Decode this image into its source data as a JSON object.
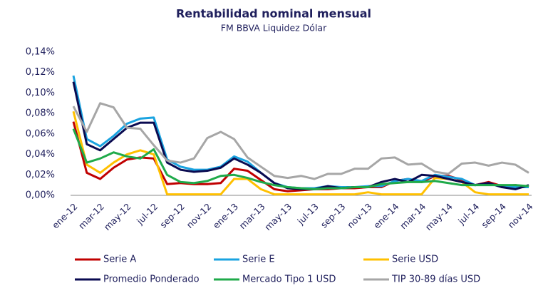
{
  "chart_data": {
    "type": "line",
    "title": "Rentabilidad nominal mensual",
    "subtitle": "FM BBVA Liquidez Dólar",
    "categories": [
      "ene-12",
      null,
      "mar-12",
      null,
      "may-12",
      null,
      "jul-12",
      null,
      "sep-12",
      null,
      "nov-12",
      null,
      "ene-13",
      null,
      "mar-13",
      null,
      "may-13",
      null,
      "jul-13",
      null,
      "sep-13",
      null,
      "nov-13",
      null,
      "ene-14",
      null,
      "mar-14",
      null,
      "may-14",
      null,
      "jul-14",
      null,
      "sep-14",
      null,
      "nov-14"
    ],
    "ylim": [
      0,
      0.14
    ],
    "yticks": [
      {
        "value": 0,
        "label": "0,00%"
      },
      {
        "value": 0.02,
        "label": "0,02%"
      },
      {
        "value": 0.04,
        "label": "0,04%"
      },
      {
        "value": 0.06,
        "label": "0,06%"
      },
      {
        "value": 0.08,
        "label": "0,08%"
      },
      {
        "value": 0.1,
        "label": "0,10%"
      },
      {
        "value": 0.12,
        "label": "0,12%"
      },
      {
        "value": 0.14,
        "label": "0,14%"
      }
    ],
    "grid": false,
    "legend": "bottom",
    "series": [
      {
        "name": "Serie A",
        "color": "#c00000",
        "values": [
          0.072,
          0.022,
          0.016,
          0.027,
          0.035,
          0.037,
          0.036,
          0.011,
          0.012,
          0.011,
          0.011,
          0.012,
          0.026,
          0.024,
          0.015,
          0.006,
          0.004,
          0.005,
          0.006,
          0.006,
          0.007,
          0.007,
          0.008,
          0.008,
          0.014,
          0.016,
          0.013,
          0.019,
          0.019,
          0.015,
          0.01,
          0.013,
          0.009,
          0.01,
          0.008
        ]
      },
      {
        "name": "Serie E",
        "color": "#1aa3e0",
        "values": [
          0.117,
          0.055,
          0.048,
          0.058,
          0.07,
          0.075,
          0.076,
          0.035,
          0.028,
          0.025,
          0.025,
          0.028,
          0.038,
          0.033,
          0.022,
          0.012,
          0.008,
          0.007,
          0.007,
          0.009,
          0.008,
          0.008,
          0.009,
          0.009,
          0.014,
          0.016,
          0.014,
          0.02,
          0.018,
          0.016,
          0.01,
          0.012,
          0.008,
          0.008,
          0.008
        ]
      },
      {
        "name": "Serie USD",
        "color": "#ffc000",
        "values": [
          0.082,
          0.03,
          0.022,
          0.032,
          0.04,
          0.044,
          0.04,
          0.001,
          0.001,
          0.001,
          0.001,
          0.001,
          0.016,
          0.016,
          0.006,
          0.001,
          0.001,
          0.001,
          0.001,
          0.001,
          0.001,
          0.001,
          0.003,
          0.001,
          0.001,
          0.001,
          0.001,
          0.017,
          0.016,
          0.013,
          0.003,
          0.001,
          0.001,
          0.001,
          0.001
        ]
      },
      {
        "name": "Promedio Ponderado",
        "color": "#0a0a50",
        "values": [
          0.111,
          0.05,
          0.044,
          0.055,
          0.066,
          0.071,
          0.071,
          0.032,
          0.025,
          0.023,
          0.024,
          0.027,
          0.036,
          0.03,
          0.022,
          0.012,
          0.007,
          0.006,
          0.006,
          0.009,
          0.007,
          0.008,
          0.008,
          0.013,
          0.016,
          0.013,
          0.02,
          0.019,
          0.016,
          0.013,
          0.01,
          0.012,
          0.008,
          0.006,
          0.01
        ]
      },
      {
        "name": "Mercado Tipo 1 USD",
        "color": "#1faa4a",
        "values": [
          0.065,
          0.032,
          0.036,
          0.042,
          0.038,
          0.036,
          0.045,
          0.02,
          0.013,
          0.012,
          0.014,
          0.019,
          0.02,
          0.017,
          0.013,
          0.01,
          0.008,
          0.007,
          0.006,
          0.007,
          0.007,
          0.008,
          0.008,
          0.011,
          0.012,
          0.013,
          0.013,
          0.014,
          0.012,
          0.01,
          0.01,
          0.01,
          0.01,
          0.01,
          0.009
        ]
      },
      {
        "name": "TIP 30-89 días USD",
        "color": "#a6a6a6",
        "values": [
          0.087,
          0.062,
          0.09,
          0.086,
          0.066,
          0.065,
          0.049,
          0.034,
          0.032,
          0.036,
          0.056,
          0.062,
          0.055,
          0.037,
          0.028,
          0.019,
          0.017,
          0.019,
          0.016,
          0.021,
          0.021,
          0.026,
          0.026,
          0.036,
          0.037,
          0.03,
          0.031,
          0.023,
          0.021,
          0.031,
          0.032,
          0.029,
          0.032,
          0.03,
          0.022
        ]
      }
    ]
  }
}
